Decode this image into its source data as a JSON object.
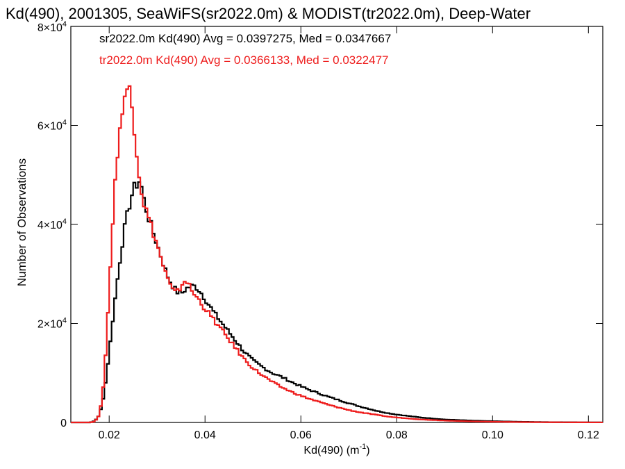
{
  "chart_data": {
    "type": "line",
    "step": true,
    "title": "Kd(490), 2001305, SeaWiFS(sr2022.0m) & MODIST(tr2022.0m), Deep-Water",
    "xlabel": "Kd(490) (m",
    "xlabel_exponent": "-1",
    "xlabel_close": ")",
    "ylabel": "Number of Observations",
    "xlim": [
      0.012,
      0.123
    ],
    "ylim": [
      0,
      80000
    ],
    "x_ticks": [
      {
        "value": 0.02,
        "label": "0.02"
      },
      {
        "value": 0.04,
        "label": "0.04"
      },
      {
        "value": 0.06,
        "label": "0.06"
      },
      {
        "value": 0.08,
        "label": "0.08"
      },
      {
        "value": 0.1,
        "label": "0.10"
      },
      {
        "value": 0.12,
        "label": "0.12"
      }
    ],
    "y_ticks": [
      {
        "value": 0,
        "mant": "0",
        "exp": ""
      },
      {
        "value": 20000,
        "mant": "2×10",
        "exp": "4"
      },
      {
        "value": 40000,
        "mant": "4×10",
        "exp": "4"
      },
      {
        "value": 60000,
        "mant": "6×10",
        "exp": "4"
      },
      {
        "value": 80000,
        "mant": "8×10",
        "exp": "4"
      }
    ],
    "series": [
      {
        "name": "sr2022.0m Kd(490) Avg = 0.0397275, Med = 0.0347667",
        "color": "#000000",
        "points": [
          [
            0.012,
            0
          ],
          [
            0.016,
            0
          ],
          [
            0.017,
            300
          ],
          [
            0.018,
            1500
          ],
          [
            0.019,
            6000
          ],
          [
            0.02,
            14000
          ],
          [
            0.021,
            23000
          ],
          [
            0.022,
            31000
          ],
          [
            0.023,
            38000
          ],
          [
            0.024,
            43000
          ],
          [
            0.025,
            47000
          ],
          [
            0.026,
            48500
          ],
          [
            0.0265,
            49000
          ],
          [
            0.027,
            46000
          ],
          [
            0.028,
            42000
          ],
          [
            0.029,
            39000
          ],
          [
            0.03,
            36000
          ],
          [
            0.031,
            33000
          ],
          [
            0.032,
            30000
          ],
          [
            0.033,
            28000
          ],
          [
            0.034,
            26500
          ],
          [
            0.035,
            26000
          ],
          [
            0.036,
            27000
          ],
          [
            0.037,
            27500
          ],
          [
            0.038,
            27500
          ],
          [
            0.039,
            26500
          ],
          [
            0.04,
            25000
          ],
          [
            0.042,
            22000
          ],
          [
            0.044,
            19500
          ],
          [
            0.046,
            17000
          ],
          [
            0.048,
            14500
          ],
          [
            0.05,
            12500
          ],
          [
            0.052,
            11200
          ],
          [
            0.054,
            10000
          ],
          [
            0.056,
            9200
          ],
          [
            0.058,
            8200
          ],
          [
            0.06,
            7300
          ],
          [
            0.062,
            6500
          ],
          [
            0.064,
            5800
          ],
          [
            0.066,
            5100
          ],
          [
            0.068,
            4500
          ],
          [
            0.07,
            3900
          ],
          [
            0.072,
            3300
          ],
          [
            0.074,
            2800
          ],
          [
            0.076,
            2300
          ],
          [
            0.078,
            1900
          ],
          [
            0.08,
            1600
          ],
          [
            0.085,
            1000
          ],
          [
            0.09,
            600
          ],
          [
            0.095,
            400
          ],
          [
            0.1,
            250
          ],
          [
            0.105,
            150
          ],
          [
            0.11,
            80
          ],
          [
            0.115,
            40
          ],
          [
            0.12,
            20
          ],
          [
            0.123,
            10
          ]
        ]
      },
      {
        "name": "tr2022.0m Kd(490) Avg = 0.0366133, Med = 0.0322477",
        "color": "#ee1c1c",
        "points": [
          [
            0.012,
            0
          ],
          [
            0.016,
            0
          ],
          [
            0.017,
            200
          ],
          [
            0.018,
            1500
          ],
          [
            0.019,
            9000
          ],
          [
            0.02,
            27000
          ],
          [
            0.021,
            45000
          ],
          [
            0.022,
            58000
          ],
          [
            0.023,
            64000
          ],
          [
            0.024,
            68000
          ],
          [
            0.0245,
            68500
          ],
          [
            0.025,
            62000
          ],
          [
            0.026,
            52000
          ],
          [
            0.027,
            45000
          ],
          [
            0.028,
            42000
          ],
          [
            0.029,
            39000
          ],
          [
            0.03,
            36000
          ],
          [
            0.031,
            32500
          ],
          [
            0.032,
            29500
          ],
          [
            0.033,
            27000
          ],
          [
            0.034,
            26000
          ],
          [
            0.035,
            27500
          ],
          [
            0.036,
            29000
          ],
          [
            0.037,
            27000
          ],
          [
            0.038,
            25500
          ],
          [
            0.039,
            24500
          ],
          [
            0.04,
            23000
          ],
          [
            0.042,
            20500
          ],
          [
            0.044,
            18000
          ],
          [
            0.046,
            15500
          ],
          [
            0.048,
            13000
          ],
          [
            0.05,
            11000
          ],
          [
            0.052,
            9500
          ],
          [
            0.054,
            8200
          ],
          [
            0.056,
            7100
          ],
          [
            0.058,
            6200
          ],
          [
            0.06,
            5400
          ],
          [
            0.062,
            4700
          ],
          [
            0.064,
            4100
          ],
          [
            0.066,
            3500
          ],
          [
            0.068,
            3000
          ],
          [
            0.07,
            2500
          ],
          [
            0.072,
            2100
          ],
          [
            0.074,
            1800
          ],
          [
            0.076,
            1500
          ],
          [
            0.078,
            1200
          ],
          [
            0.08,
            1000
          ],
          [
            0.085,
            600
          ],
          [
            0.09,
            380
          ],
          [
            0.095,
            230
          ],
          [
            0.1,
            140
          ],
          [
            0.105,
            80
          ],
          [
            0.11,
            45
          ],
          [
            0.115,
            25
          ],
          [
            0.12,
            12
          ],
          [
            0.123,
            5
          ]
        ]
      }
    ]
  }
}
